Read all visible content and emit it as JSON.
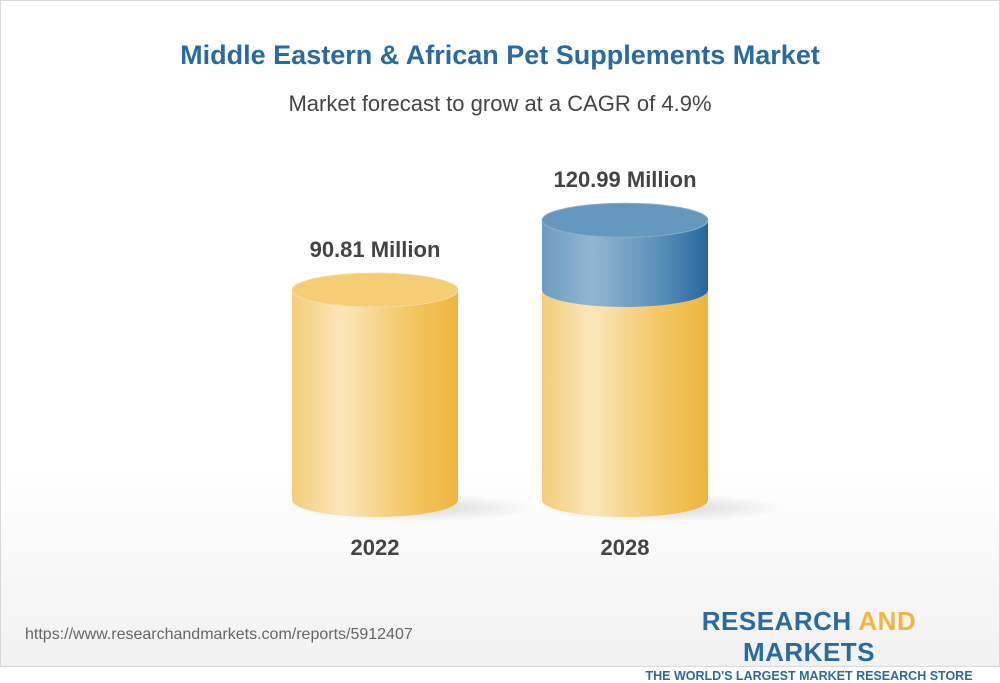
{
  "chart_data": {
    "type": "bar",
    "title": "Middle Eastern & African Pet Supplements Market",
    "subtitle": "Market forecast to grow at a CAGR of 4.9%",
    "categories": [
      "2022",
      "2028"
    ],
    "values": [
      90.81,
      120.99
    ],
    "data_labels": [
      "90.81 Million",
      "120.99 Million"
    ],
    "unit": "Million",
    "colors": {
      "base": "#f0b940",
      "growth": "#2a6aa1"
    }
  },
  "footer": {
    "url": "https://www.researchandmarkets.com/reports/5912407",
    "logo_part1": "RESEARCH ",
    "logo_part2": "AND",
    "logo_part3": " MARKETS",
    "logo_tagline": "THE WORLD'S LARGEST MARKET RESEARCH STORE"
  }
}
